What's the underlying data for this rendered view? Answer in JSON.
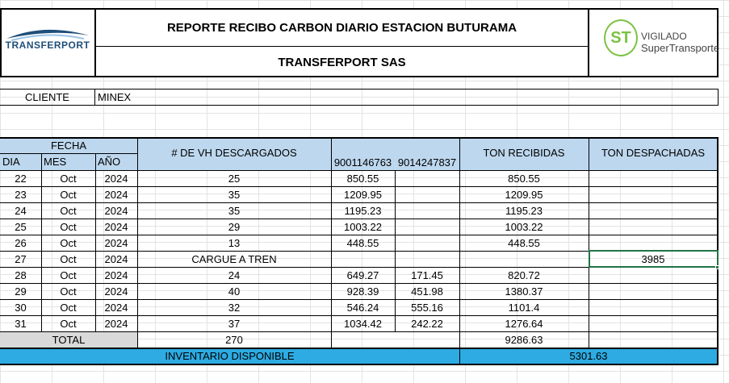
{
  "header": {
    "title": "REPORTE RECIBO CARBON  DIARIO ESTACION BUTURAMA",
    "company": "TRANSFERPORT SAS",
    "logo_left_text": "TRANSFERPORT",
    "logo_right_line1": "VIGILADO",
    "logo_right_line2": "SuperTransporte",
    "logo_right_badge": "ST"
  },
  "client": {
    "label": "CLIENTE",
    "value": "MINEX"
  },
  "columns": {
    "fecha": "FECHA",
    "dia": "DIA",
    "mes": "MES",
    "anio": "AÑO",
    "vh": "# DE VH DESCARGADOS",
    "nit1": "9001146763",
    "nit2": "9014247837",
    "ton_recibidas": "TON RECIBIDAS",
    "ton_despachadas": "TON DESPACHADAS"
  },
  "rows": [
    {
      "dia": "22",
      "mes": "Oct",
      "anio": "2024",
      "vh": "25",
      "n1": "850.55",
      "n2": "",
      "rec": "850.55",
      "desp": ""
    },
    {
      "dia": "23",
      "mes": "Oct",
      "anio": "2024",
      "vh": "35",
      "n1": "1209.95",
      "n2": "",
      "rec": "1209.95",
      "desp": ""
    },
    {
      "dia": "24",
      "mes": "Oct",
      "anio": "2024",
      "vh": "35",
      "n1": "1195.23",
      "n2": "",
      "rec": "1195.23",
      "desp": ""
    },
    {
      "dia": "25",
      "mes": "Oct",
      "anio": "2024",
      "vh": "29",
      "n1": "1003.22",
      "n2": "",
      "rec": "1003.22",
      "desp": ""
    },
    {
      "dia": "26",
      "mes": "Oct",
      "anio": "2024",
      "vh": "13",
      "n1": "448.55",
      "n2": "",
      "rec": "448.55",
      "desp": ""
    },
    {
      "dia": "27",
      "mes": "Oct",
      "anio": "2024",
      "vh": "CARGUE A TREN",
      "n1": "",
      "n2": "",
      "rec": "",
      "desp": "3985"
    },
    {
      "dia": "28",
      "mes": "Oct",
      "anio": "2024",
      "vh": "24",
      "n1": "649.27",
      "n2": "171.45",
      "rec": "820.72",
      "desp": ""
    },
    {
      "dia": "29",
      "mes": "Oct",
      "anio": "2024",
      "vh": "40",
      "n1": "928.39",
      "n2": "451.98",
      "rec": "1380.37",
      "desp": ""
    },
    {
      "dia": "30",
      "mes": "Oct",
      "anio": "2024",
      "vh": "32",
      "n1": "546.24",
      "n2": "555.16",
      "rec": "1101.4",
      "desp": ""
    },
    {
      "dia": "31",
      "mes": "Oct",
      "anio": "2024",
      "vh": "37",
      "n1": "1034.42",
      "n2": "242.22",
      "rec": "1276.64",
      "desp": ""
    }
  ],
  "total": {
    "label": "TOTAL",
    "vh": "270",
    "rec": "9286.63"
  },
  "inventory": {
    "label": "INVENTARIO DISPONIBLE",
    "value": "5301.63"
  },
  "colors": {
    "header_blue": "#bdd7ee",
    "inventory_blue": "#2dabe2",
    "total_gray": "#d9d9d9",
    "selection_green": "#217346"
  }
}
